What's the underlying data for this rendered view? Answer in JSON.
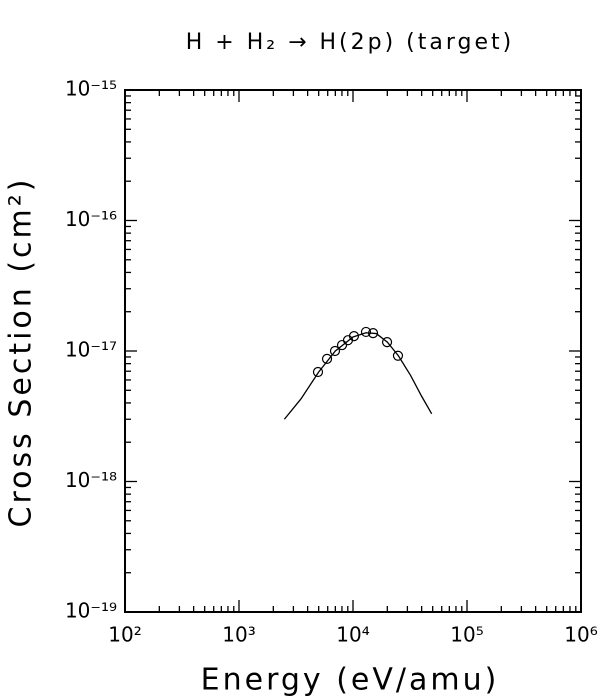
{
  "chart_data": {
    "type": "line",
    "title": "H + H₂ → H(2p) (target)",
    "x_label": "Energy (eV/amu)",
    "y_label": "Cross Section (cm²)",
    "xscale": "log",
    "yscale": "log",
    "xlim": [
      100,
      1000000
    ],
    "ylim": [
      1e-19,
      1e-15
    ],
    "xticks": [
      {
        "value": 100,
        "label": "10²"
      },
      {
        "value": 1000,
        "label": "10³"
      },
      {
        "value": 10000,
        "label": "10⁴"
      },
      {
        "value": 100000,
        "label": "10⁵"
      },
      {
        "value": 1000000,
        "label": "10⁶"
      }
    ],
    "yticks": [
      {
        "value": 1e-19,
        "label": "10⁻¹⁹"
      },
      {
        "value": 1e-18,
        "label": "10⁻¹⁸"
      },
      {
        "value": 1e-17,
        "label": "10⁻¹⁷"
      },
      {
        "value": 1e-16,
        "label": "10⁻¹⁶"
      },
      {
        "value": 1e-15,
        "label": "10⁻¹⁵"
      }
    ],
    "series": [
      {
        "type": "line",
        "color": "#000000",
        "x": [
          2500,
          3500,
          5000,
          7000,
          10000,
          13000,
          16000,
          20000,
          25000,
          32000,
          40000,
          49000
        ],
        "values": [
          3e-18,
          4.3e-18,
          6.9e-18,
          1e-17,
          1.28e-17,
          1.38e-17,
          1.36e-17,
          1.17e-17,
          9.2e-18,
          6.5e-18,
          4.5e-18,
          3.3e-18
        ]
      },
      {
        "type": "scatter",
        "color": "#000000",
        "x": [
          4930,
          5920,
          6950,
          8010,
          9040,
          10200,
          13000,
          15000,
          19900,
          24800
        ],
        "values": [
          6.9e-18,
          8.7e-18,
          1e-17,
          1.11e-17,
          1.21e-17,
          1.3e-17,
          1.4e-17,
          1.37e-17,
          1.17e-17,
          9.2e-18
        ]
      }
    ]
  }
}
